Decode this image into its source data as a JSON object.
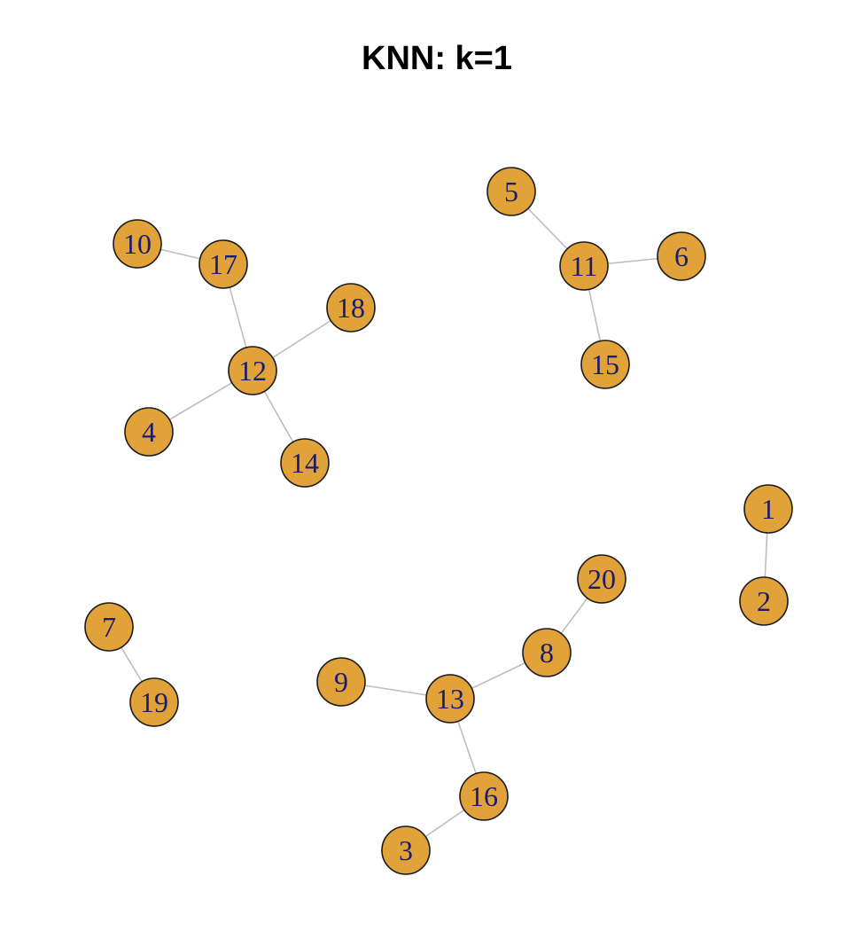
{
  "title": "KNN: k=1",
  "colors": {
    "node_fill": "#E1A23A",
    "node_label": "#1C1C6E",
    "edge": "#BEBEBE"
  },
  "nodes": [
    {
      "id": "1"
    },
    {
      "id": "2"
    },
    {
      "id": "3"
    },
    {
      "id": "4"
    },
    {
      "id": "5"
    },
    {
      "id": "6"
    },
    {
      "id": "7"
    },
    {
      "id": "8"
    },
    {
      "id": "9"
    },
    {
      "id": "10"
    },
    {
      "id": "11"
    },
    {
      "id": "12"
    },
    {
      "id": "13"
    },
    {
      "id": "14"
    },
    {
      "id": "15"
    },
    {
      "id": "16"
    },
    {
      "id": "17"
    },
    {
      "id": "18"
    },
    {
      "id": "19"
    },
    {
      "id": "20"
    }
  ],
  "edges": [
    [
      "10",
      "17"
    ],
    [
      "17",
      "12"
    ],
    [
      "12",
      "18"
    ],
    [
      "12",
      "4"
    ],
    [
      "12",
      "14"
    ],
    [
      "5",
      "11"
    ],
    [
      "11",
      "6"
    ],
    [
      "11",
      "15"
    ],
    [
      "1",
      "2"
    ],
    [
      "7",
      "19"
    ],
    [
      "20",
      "8"
    ],
    [
      "8",
      "13"
    ],
    [
      "9",
      "13"
    ],
    [
      "13",
      "16"
    ],
    [
      "16",
      "3"
    ]
  ]
}
